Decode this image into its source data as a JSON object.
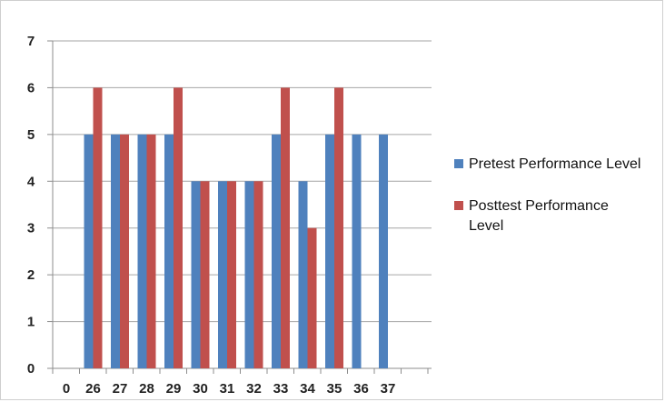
{
  "chart_data": {
    "type": "bar",
    "title": "",
    "xlabel": "",
    "ylabel": "",
    "ylim": [
      0,
      7
    ],
    "y_ticks": [
      "0",
      "1",
      "2",
      "3",
      "4",
      "5",
      "6",
      "7"
    ],
    "categories": [
      "0",
      "26",
      "27",
      "28",
      "29",
      "30",
      "31",
      "32",
      "33",
      "34",
      "35",
      "36",
      "37"
    ],
    "grid": "horizontal",
    "legend_position": "right",
    "series": [
      {
        "name": "Pretest Performance Level",
        "color": "#4f81bd",
        "values": [
          null,
          5,
          5,
          5,
          5,
          4,
          4,
          4,
          5,
          4,
          5,
          5,
          5
        ]
      },
      {
        "name": "Posttest Performance Level",
        "color": "#c0504d",
        "values": [
          null,
          6,
          5,
          5,
          6,
          4,
          4,
          4,
          6,
          3,
          6,
          null,
          null
        ]
      }
    ]
  }
}
